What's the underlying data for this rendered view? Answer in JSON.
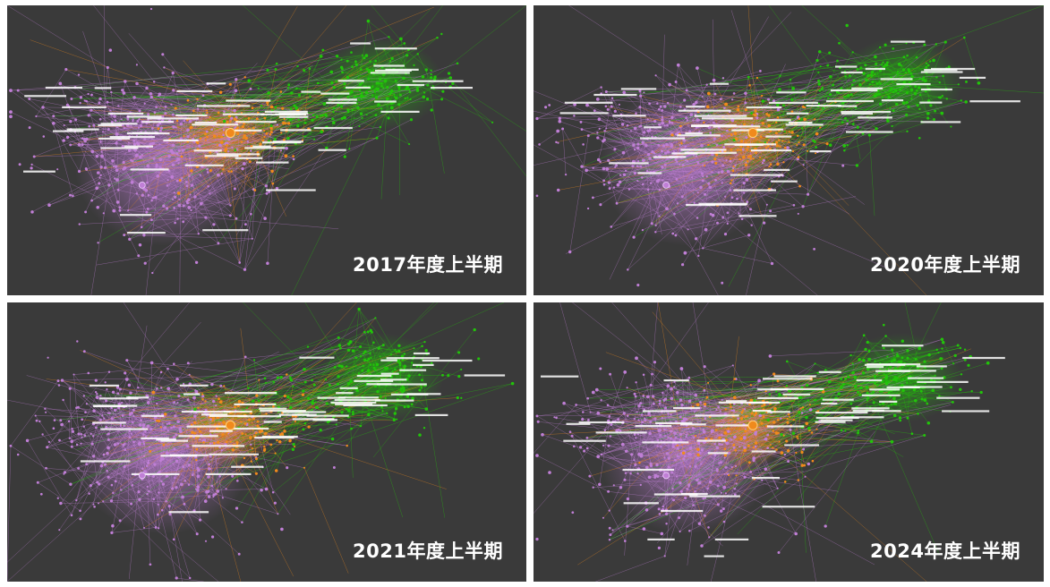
{
  "colors": {
    "background": "#3a3a3a",
    "divider": "#ffffff",
    "cluster_purple": "#c07fd6",
    "cluster_orange": "#f08a1c",
    "cluster_green": "#22c40a",
    "label_text": "#ffffff"
  },
  "icon_names": [
    "network-graph"
  ],
  "panels": [
    {
      "label": "2017年度上半期",
      "seed": 17
    },
    {
      "label": "2020年度上半期",
      "seed": 20
    },
    {
      "label": "2021年度上半期",
      "seed": 21
    },
    {
      "label": "2024年度上半期",
      "seed": 24
    }
  ]
}
